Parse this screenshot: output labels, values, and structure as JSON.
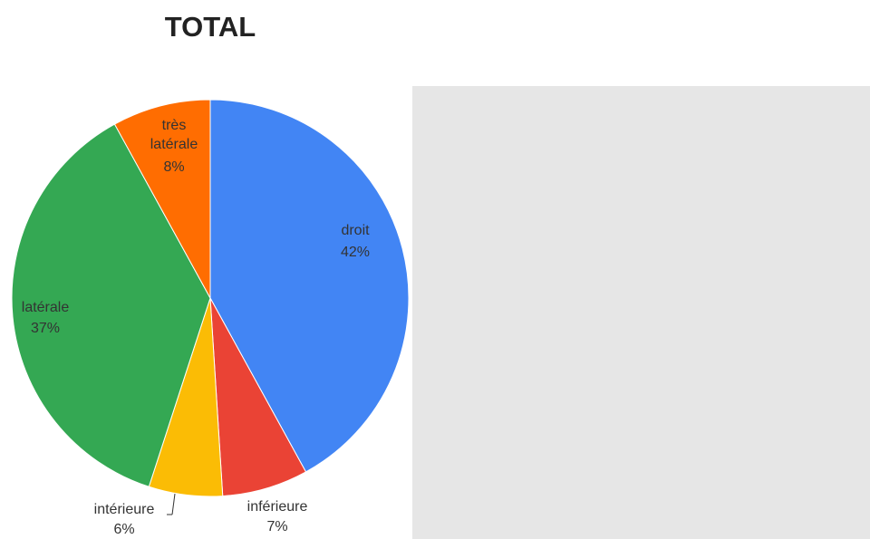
{
  "chart_data": {
    "type": "pie",
    "title": "TOTAL",
    "categories": [
      "droit",
      "inférieure",
      "intérieure",
      "latérale",
      "très latérale"
    ],
    "values": [
      42,
      7,
      6,
      37,
      8
    ],
    "value_labels": [
      "42%",
      "7%",
      "6%",
      "37%",
      "8%"
    ],
    "colors": [
      "#4285f4",
      "#ea4335",
      "#fbbc05",
      "#34a853",
      "#ff6d01"
    ]
  }
}
